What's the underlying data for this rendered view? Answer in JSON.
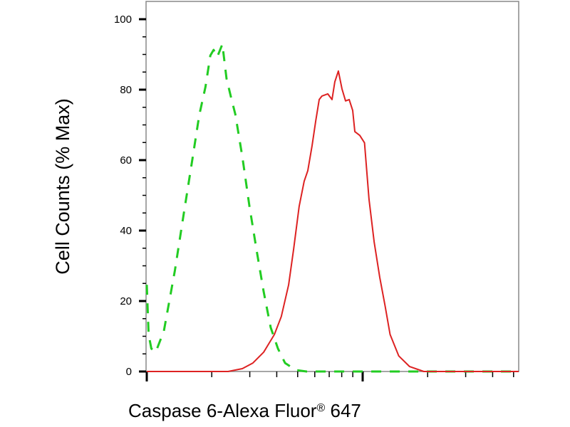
{
  "chart_data": {
    "type": "line",
    "title": "",
    "xlabel_main": "Caspase 6-Alexa Fluor",
    "xlabel_reg": "®",
    "xlabel_tail": " 647",
    "ylabel": "Cell Counts (% Max)",
    "x_scale": "log",
    "xlim": [
      1,
      52.8
    ],
    "ylim": [
      0,
      100
    ],
    "yticks": [
      0,
      20,
      40,
      60,
      80,
      100
    ],
    "yminor_step": 5,
    "grid": false,
    "legend": "none",
    "series": [
      {
        "style": "dashed",
        "color": "#22cc22",
        "x": [
          1.0,
          1.02,
          1.05,
          1.1,
          1.2,
          1.35,
          1.48,
          1.63,
          1.75,
          1.87,
          1.97,
          2.04,
          2.12,
          2.24,
          2.34,
          2.47,
          2.57,
          2.77,
          2.99,
          3.22,
          3.48,
          3.75,
          4.05,
          4.37,
          4.9,
          5.49,
          19.96,
          52.8
        ],
        "y": [
          24.6,
          10.5,
          6.5,
          5.5,
          11.5,
          28.7,
          44.4,
          60.6,
          72.7,
          80.8,
          89.7,
          91.3,
          89.3,
          92.9,
          83.2,
          77.2,
          73.1,
          61.0,
          46.9,
          34.7,
          22.6,
          12.5,
          6.5,
          2.4,
          0.4,
          0,
          0,
          0
        ]
      },
      {
        "style": "solid",
        "color": "#dd2222",
        "x": [
          1.0,
          2.38,
          2.77,
          3.1,
          3.48,
          3.9,
          4.2,
          4.54,
          4.79,
          5.08,
          5.36,
          5.57,
          5.83,
          6.06,
          6.29,
          6.48,
          6.89,
          7.21,
          7.43,
          7.72,
          8.02,
          8.33,
          8.66,
          8.99,
          9.2,
          9.7,
          10.2,
          10.7,
          11.3,
          12.0,
          12.7,
          13.4,
          14.7,
          16.5,
          19.2,
          52.8
        ],
        "y": [
          0,
          0,
          0.8,
          2.4,
          5.5,
          10.5,
          15.6,
          24.6,
          34.7,
          46.9,
          54.0,
          57.0,
          64.1,
          71.1,
          77.2,
          78.2,
          78.8,
          77.2,
          82.2,
          85.3,
          80.2,
          76.8,
          77.2,
          74.1,
          68.1,
          67.0,
          64.9,
          48.9,
          36.8,
          26.7,
          18.6,
          10.5,
          4.4,
          1.4,
          0,
          0
        ]
      }
    ]
  }
}
